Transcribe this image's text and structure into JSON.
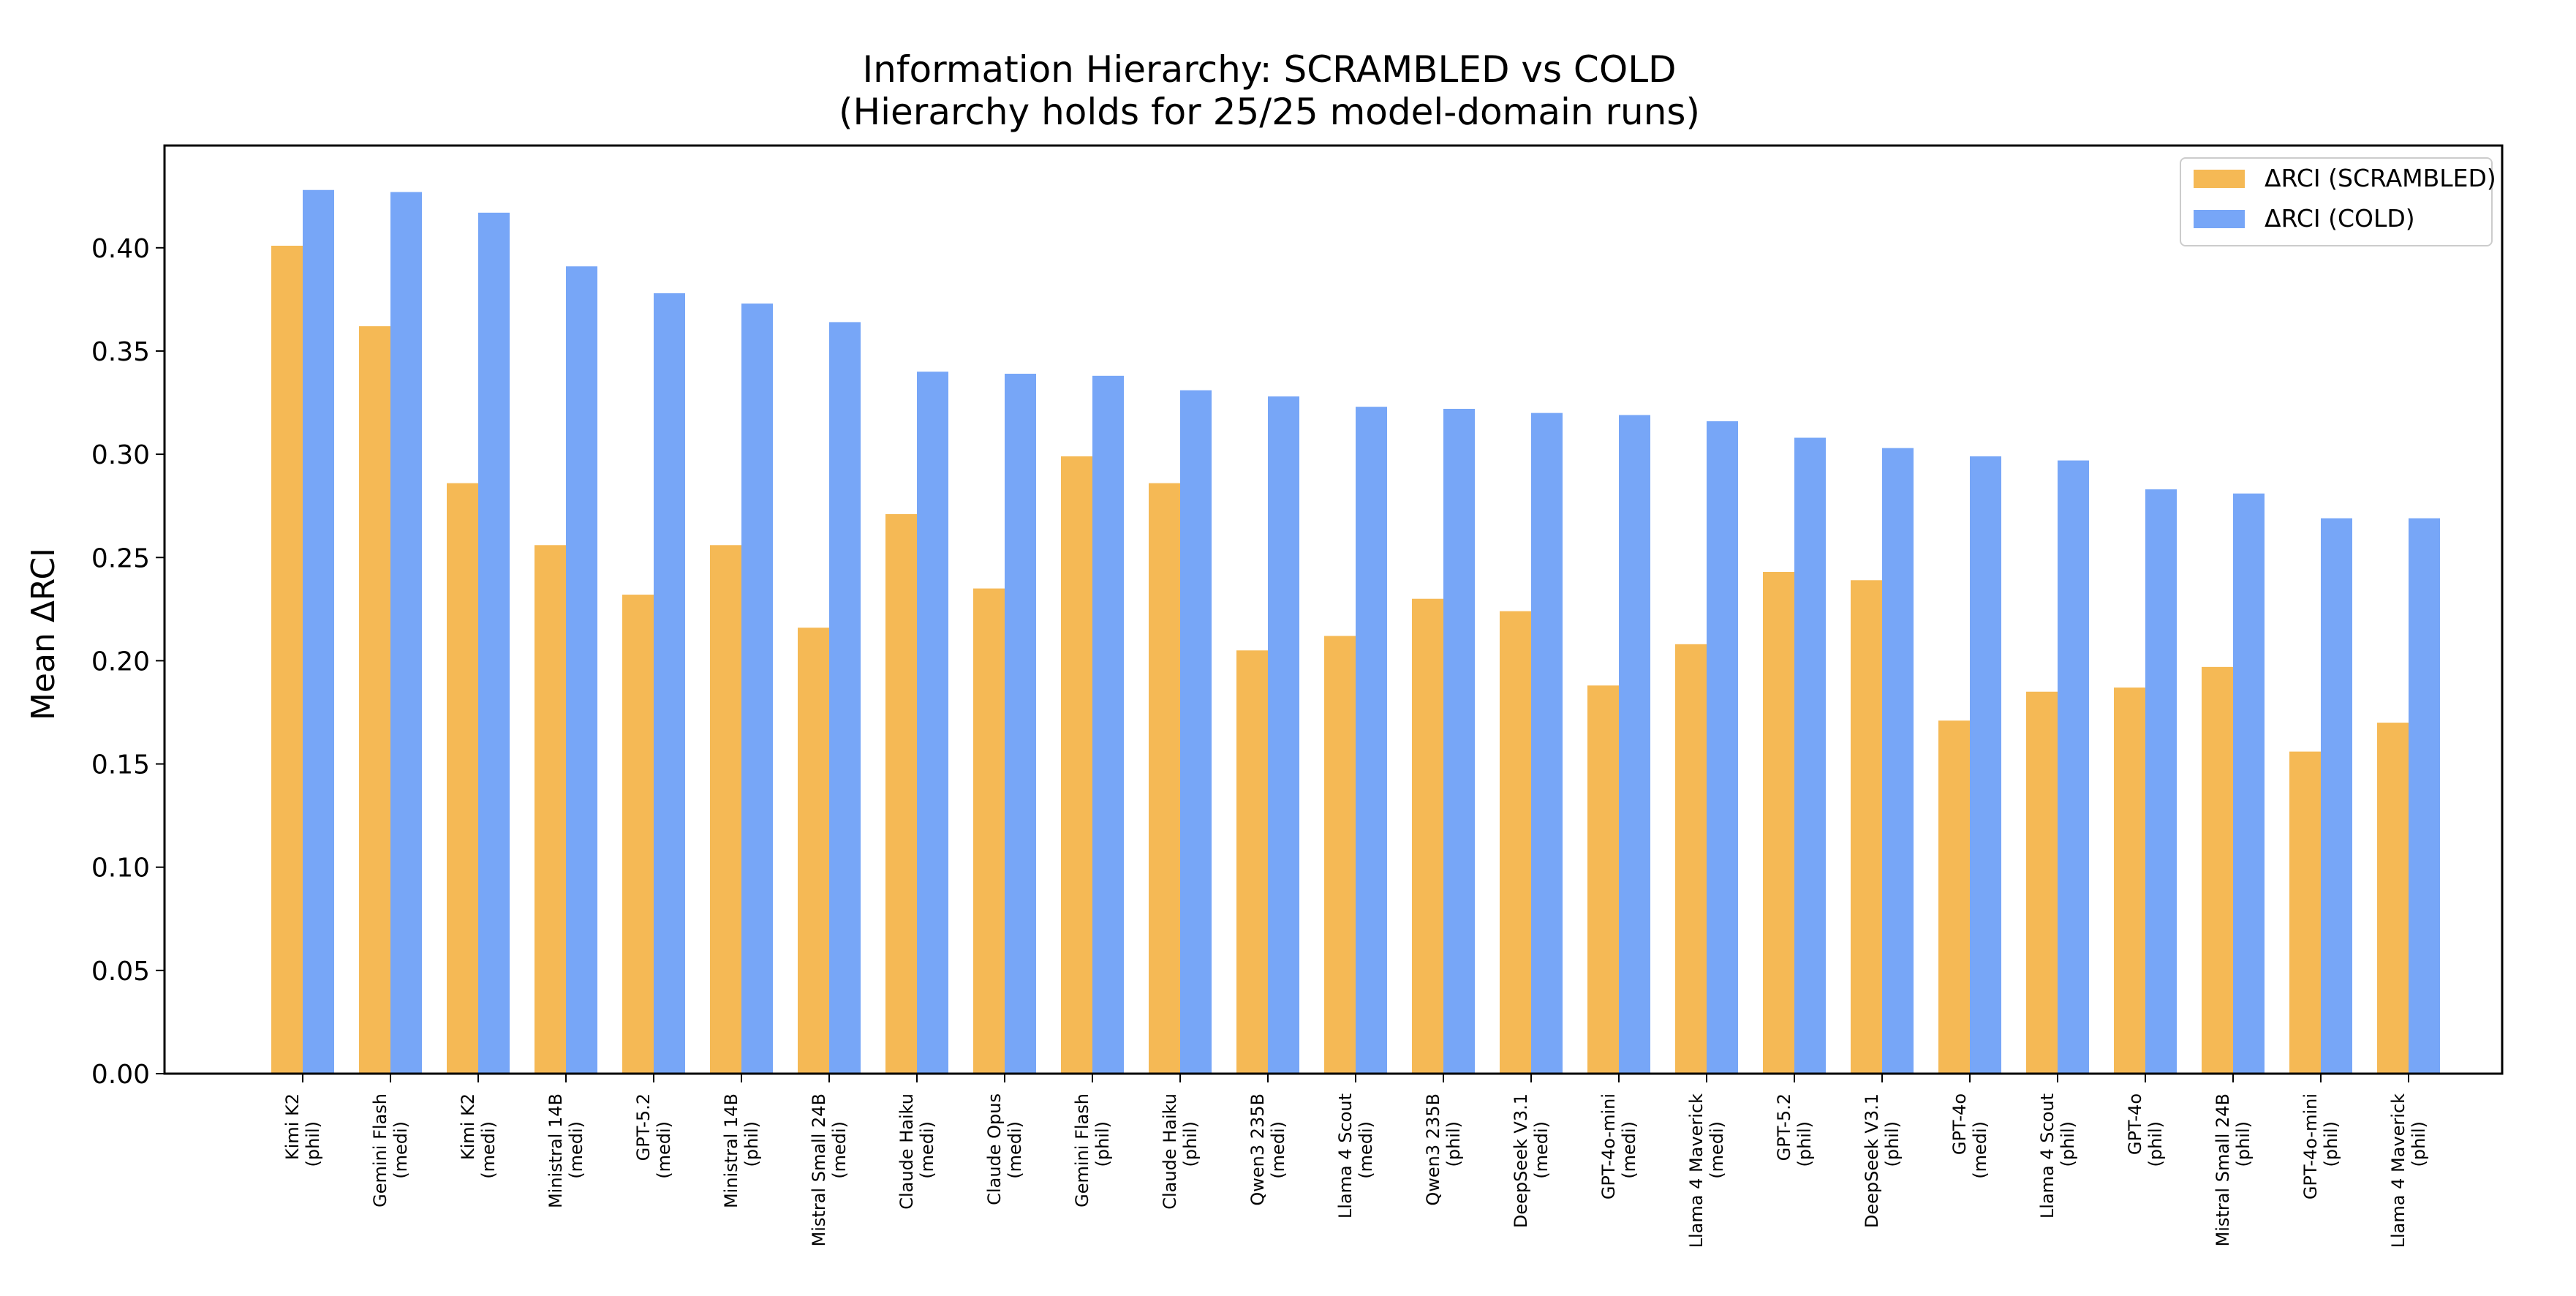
{
  "chart_data": {
    "type": "bar",
    "title": "Information Hierarchy: SCRAMBLED vs COLD",
    "subtitle": "(Hierarchy holds for 25/25 model-domain runs)",
    "xlabel": "",
    "ylabel": "Mean ΔRCI",
    "ylim": [
      0,
      0.45
    ],
    "yticks": [
      "0.00",
      "0.05",
      "0.10",
      "0.15",
      "0.20",
      "0.25",
      "0.30",
      "0.35",
      "0.40"
    ],
    "grid": false,
    "legend_position": "top-right",
    "categories": [
      [
        "Kimi K2",
        "(phil)"
      ],
      [
        "Gemini Flash",
        "(medi)"
      ],
      [
        "Kimi K2",
        "(medi)"
      ],
      [
        "Ministral 14B",
        "(medi)"
      ],
      [
        "GPT-5.2",
        "(medi)"
      ],
      [
        "Ministral 14B",
        "(phil)"
      ],
      [
        "Mistral Small 24B",
        "(medi)"
      ],
      [
        "Claude Haiku",
        "(medi)"
      ],
      [
        "Claude Opus",
        "(medi)"
      ],
      [
        "Gemini Flash",
        "(phil)"
      ],
      [
        "Claude Haiku",
        "(phil)"
      ],
      [
        "Qwen3 235B",
        "(medi)"
      ],
      [
        "Llama 4 Scout",
        "(medi)"
      ],
      [
        "Qwen3 235B",
        "(phil)"
      ],
      [
        "DeepSeek V3.1",
        "(medi)"
      ],
      [
        "GPT-4o-mini",
        "(medi)"
      ],
      [
        "Llama 4 Maverick",
        "(medi)"
      ],
      [
        "GPT-5.2",
        "(phil)"
      ],
      [
        "DeepSeek V3.1",
        "(phil)"
      ],
      [
        "GPT-4o",
        "(medi)"
      ],
      [
        "Llama 4 Scout",
        "(phil)"
      ],
      [
        "GPT-4o",
        "(phil)"
      ],
      [
        "Mistral Small 24B",
        "(phil)"
      ],
      [
        "GPT-4o-mini",
        "(phil)"
      ],
      [
        "Llama 4 Maverick",
        "(phil)"
      ]
    ],
    "series": [
      {
        "name": "ΔRCI (SCRAMBLED)",
        "color": "#f5b955",
        "values": [
          0.401,
          0.362,
          0.286,
          0.256,
          0.232,
          0.256,
          0.216,
          0.271,
          0.235,
          0.299,
          0.286,
          0.205,
          0.212,
          0.23,
          0.224,
          0.188,
          0.208,
          0.243,
          0.239,
          0.171,
          0.185,
          0.187,
          0.197,
          0.156,
          0.17
        ]
      },
      {
        "name": "ΔRCI (COLD)",
        "color": "#77a6f7",
        "values": [
          0.428,
          0.427,
          0.417,
          0.391,
          0.378,
          0.373,
          0.364,
          0.34,
          0.339,
          0.338,
          0.331,
          0.328,
          0.323,
          0.322,
          0.32,
          0.319,
          0.316,
          0.308,
          0.303,
          0.299,
          0.297,
          0.283,
          0.281,
          0.269,
          0.269
        ]
      }
    ]
  }
}
